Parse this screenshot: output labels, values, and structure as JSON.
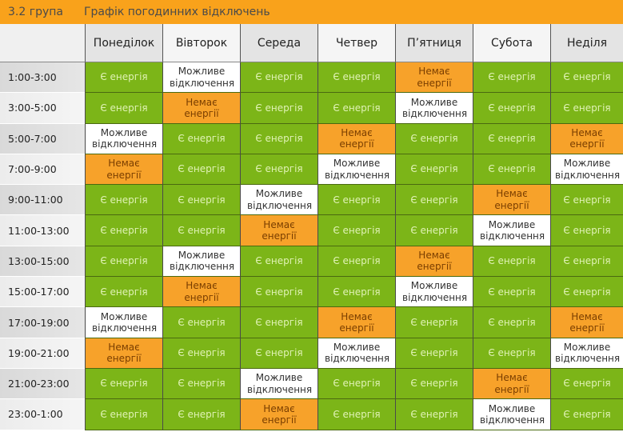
{
  "header": {
    "group": "3.2 група",
    "title": "Графік погодинних відключень"
  },
  "colors": {
    "accent": "#f9a21b",
    "power_on": "#7cb518",
    "power_off": "#f7a22a",
    "maybe": "#ffffff"
  },
  "days": [
    "Понеділок",
    "Вівторок",
    "Середа",
    "Четвер",
    "П’ятниця",
    "Субота",
    "Неділя"
  ],
  "legend": {
    "on": "Є енергія",
    "off": "Немає енергії",
    "maybe": "Можливе відключення"
  },
  "rows": [
    {
      "time": "1:00-3:00",
      "cells": [
        "Є енергія",
        "Можливе відключення",
        "Є енергія",
        "Є енергія",
        "Немає енергії",
        "Є енергія",
        "Є енергія"
      ],
      "status": [
        "on",
        "maybe",
        "on",
        "on",
        "off",
        "on",
        "on"
      ]
    },
    {
      "time": "3:00-5:00",
      "cells": [
        "Є енергія",
        "Немає енергії",
        "Є енергія",
        "Є енергія",
        "Можливе відключення",
        "Є енергія",
        "Є енергія"
      ],
      "status": [
        "on",
        "off",
        "on",
        "on",
        "maybe",
        "on",
        "on"
      ]
    },
    {
      "time": "5:00-7:00",
      "cells": [
        "Можливе відключення",
        "Є енергія",
        "Є енергія",
        "Немає енергії",
        "Є енергія",
        "Є енергія",
        "Немає енергії"
      ],
      "status": [
        "maybe",
        "on",
        "on",
        "off",
        "on",
        "on",
        "off"
      ]
    },
    {
      "time": "7:00-9:00",
      "cells": [
        "Немає енергії",
        "Є енергія",
        "Є енергія",
        "Можливе відключення",
        "Є енергія",
        "Є енергія",
        "Можливе відключення"
      ],
      "status": [
        "off",
        "on",
        "on",
        "maybe",
        "on",
        "on",
        "maybe"
      ]
    },
    {
      "time": "9:00-11:00",
      "cells": [
        "Є енергія",
        "Є енергія",
        "Можливе відключення",
        "Є енергія",
        "Є енергія",
        "Немає енергії",
        "Є енергія"
      ],
      "status": [
        "on",
        "on",
        "maybe",
        "on",
        "on",
        "off",
        "on"
      ]
    },
    {
      "time": "11:00-13:00",
      "cells": [
        "Є енергія",
        "Є енергія",
        "Немає енергії",
        "Є енергія",
        "Є енергія",
        "Можливе відключення",
        "Є енергія"
      ],
      "status": [
        "on",
        "on",
        "off",
        "on",
        "on",
        "maybe",
        "on"
      ]
    },
    {
      "time": "13:00-15:00",
      "cells": [
        "Є енергія",
        "Можливе відключення",
        "Є енергія",
        "Є енергія",
        "Немає енергії",
        "Є енергія",
        "Є енергія"
      ],
      "status": [
        "on",
        "maybe",
        "on",
        "on",
        "off",
        "on",
        "on"
      ]
    },
    {
      "time": "15:00-17:00",
      "cells": [
        "Є енергія",
        "Немає енергії",
        "Є енергія",
        "Є енергія",
        "Можливе відключення",
        "Є енергія",
        "Є енергія"
      ],
      "status": [
        "on",
        "off",
        "on",
        "on",
        "maybe",
        "on",
        "on"
      ]
    },
    {
      "time": "17:00-19:00",
      "cells": [
        "Можливе відключення",
        "Є енергія",
        "Є енергія",
        "Немає енергії",
        "Є енергія",
        "Є енергія",
        "Немає енергії"
      ],
      "status": [
        "maybe",
        "on",
        "on",
        "off",
        "on",
        "on",
        "off"
      ]
    },
    {
      "time": "19:00-21:00",
      "cells": [
        "Немає енергії",
        "Є енергія",
        "Є енергія",
        "Можливе відключення",
        "Є енергія",
        "Є енергія",
        "Можливе відключення"
      ],
      "status": [
        "off",
        "on",
        "on",
        "maybe",
        "on",
        "on",
        "maybe"
      ]
    },
    {
      "time": "21:00-23:00",
      "cells": [
        "Є енергія",
        "Є енергія",
        "Можливе відключення",
        "Є енергія",
        "Є енергія",
        "Немає енергії",
        "Є енергія"
      ],
      "status": [
        "on",
        "on",
        "maybe",
        "on",
        "on",
        "off",
        "on"
      ]
    },
    {
      "time": "23:00-1:00",
      "cells": [
        "Є енергія",
        "Є енергія",
        "Немає енергії",
        "Є енергія",
        "Є енергія",
        "Можливе відключення",
        "Є енергія"
      ],
      "status": [
        "on",
        "on",
        "off",
        "on",
        "on",
        "maybe",
        "on"
      ]
    }
  ]
}
